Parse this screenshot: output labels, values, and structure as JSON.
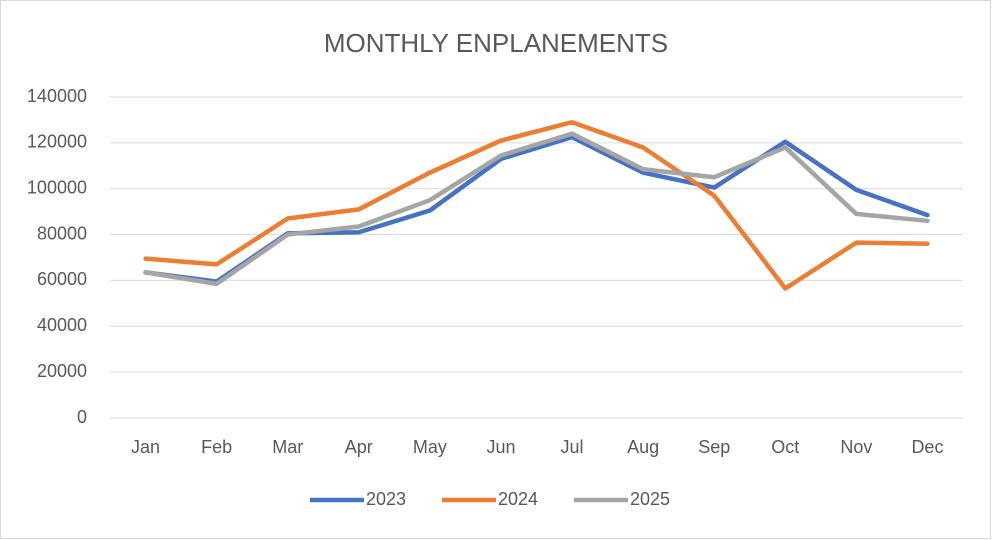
{
  "chart_data": {
    "type": "line",
    "title": "MONTHLY ENPLANEMENTS",
    "categories": [
      "Jan",
      "Feb",
      "Mar",
      "Apr",
      "May",
      "Jun",
      "Jul",
      "Aug",
      "Sep",
      "Oct",
      "Nov",
      "Dec"
    ],
    "series": [
      {
        "name": "2023",
        "color": "#4472c4",
        "values": [
          63500,
          59500,
          80500,
          81000,
          90500,
          113000,
          122500,
          107000,
          100500,
          120500,
          99500,
          88500
        ]
      },
      {
        "name": "2024",
        "color": "#ed7d31",
        "values": [
          69500,
          67000,
          87000,
          91000,
          107000,
          121000,
          129000,
          118000,
          97000,
          56500,
          76500,
          76000
        ]
      },
      {
        "name": "2025",
        "color": "#a5a5a5",
        "values": [
          63500,
          58500,
          80000,
          83500,
          95000,
          114500,
          124000,
          108500,
          105000,
          118000,
          89000,
          86000
        ]
      }
    ],
    "ylim": [
      0,
      140000
    ],
    "yticks": [
      0,
      20000,
      40000,
      60000,
      80000,
      100000,
      120000,
      140000
    ],
    "grid": true,
    "legend": "bottom"
  }
}
